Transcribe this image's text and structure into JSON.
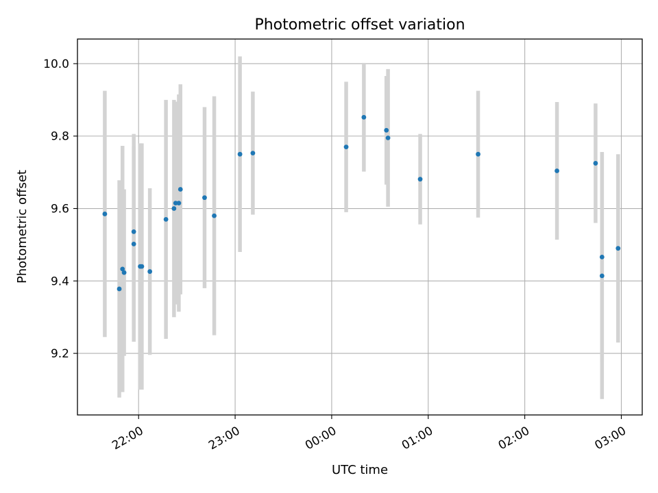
{
  "chart_data": {
    "type": "scatter",
    "title": "Photometric offset variation",
    "xlabel": "UTC time",
    "ylabel": "Photometric offset",
    "x_axis_type": "time",
    "x_reference_date": "",
    "xlim": [
      "21:22",
      "03:13"
    ],
    "ylim": [
      9.03,
      10.068
    ],
    "xticks": [
      "22:00",
      "23:00",
      "00:00",
      "01:00",
      "02:00",
      "03:00"
    ],
    "yticks": [
      9.2,
      9.4,
      9.6,
      9.8,
      10.0
    ],
    "ytick_labels": [
      "9.2",
      "9.4",
      "9.6",
      "9.8",
      "10.0"
    ],
    "grid": true,
    "legend": "none",
    "marker_color": "#1f77b4",
    "errorbar_color": "#d3d3d3",
    "series": [
      {
        "points": [
          {
            "x": "21:39",
            "y": 9.585,
            "yerr": 0.34
          },
          {
            "x": "21:48",
            "y": 9.378,
            "yerr": 0.3
          },
          {
            "x": "21:50",
            "y": 9.433,
            "yerr": 0.34
          },
          {
            "x": "21:51",
            "y": 9.423,
            "yerr": 0.23
          },
          {
            "x": "21:57",
            "y": 9.536,
            "yerr": 0.27
          },
          {
            "x": "21:57",
            "y": 9.502,
            "yerr": 0.27
          },
          {
            "x": "22:01",
            "y": 9.44,
            "yerr": 0.34
          },
          {
            "x": "22:02",
            "y": 9.44,
            "yerr": 0.34
          },
          {
            "x": "22:07",
            "y": 9.426,
            "yerr": 0.23
          },
          {
            "x": "22:17",
            "y": 9.57,
            "yerr": 0.33
          },
          {
            "x": "22:22",
            "y": 9.6,
            "yerr": 0.3
          },
          {
            "x": "22:23",
            "y": 9.615,
            "yerr": 0.28
          },
          {
            "x": "22:25",
            "y": 9.615,
            "yerr": 0.3
          },
          {
            "x": "22:26",
            "y": 9.653,
            "yerr": 0.29
          },
          {
            "x": "22:41",
            "y": 9.63,
            "yerr": 0.25
          },
          {
            "x": "22:47",
            "y": 9.58,
            "yerr": 0.33
          },
          {
            "x": "23:03",
            "y": 9.75,
            "yerr": 0.27
          },
          {
            "x": "23:11",
            "y": 9.753,
            "yerr": 0.17
          },
          {
            "x": "00:09",
            "y": 9.77,
            "yerr": 0.18
          },
          {
            "x": "00:20",
            "y": 9.852,
            "yerr": 0.15
          },
          {
            "x": "00:34",
            "y": 9.816,
            "yerr": 0.15
          },
          {
            "x": "00:35",
            "y": 9.795,
            "yerr": 0.19
          },
          {
            "x": "00:55",
            "y": 9.681,
            "yerr": 0.125
          },
          {
            "x": "01:31",
            "y": 9.75,
            "yerr": 0.175
          },
          {
            "x": "02:20",
            "y": 9.704,
            "yerr": 0.19
          },
          {
            "x": "02:44",
            "y": 9.725,
            "yerr": 0.165
          },
          {
            "x": "02:48",
            "y": 9.414,
            "yerr": 0.34
          },
          {
            "x": "02:48",
            "y": 9.466,
            "yerr": 0.29
          },
          {
            "x": "02:58",
            "y": 9.49,
            "yerr": 0.26
          }
        ]
      }
    ]
  }
}
